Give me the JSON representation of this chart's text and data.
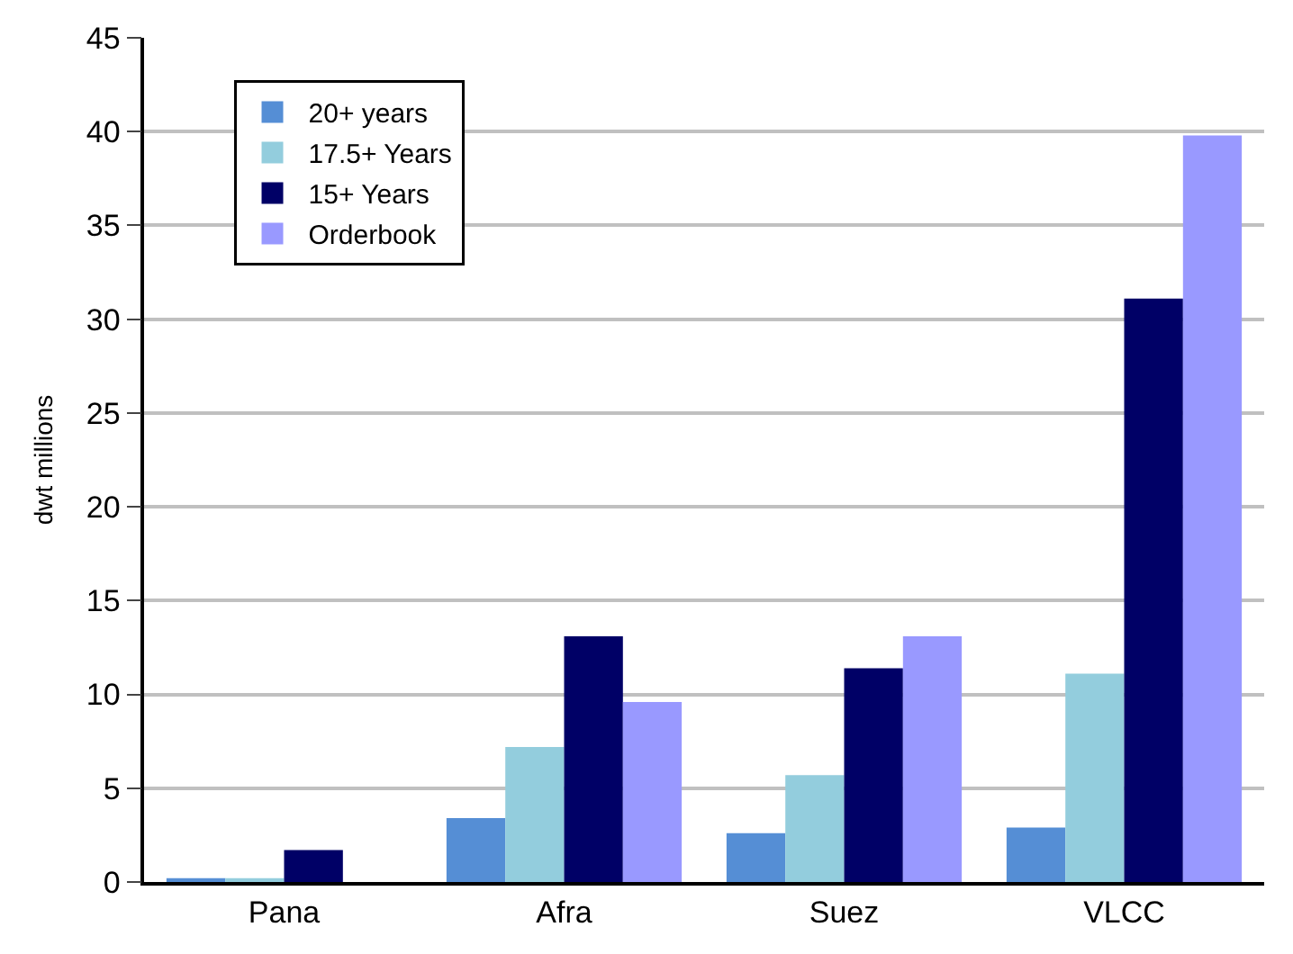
{
  "chart_data": {
    "type": "bar",
    "ylabel": "dwt millions",
    "categories": [
      "Pana",
      "Afra",
      "Suez",
      "VLCC"
    ],
    "series": [
      {
        "name": "20+ years",
        "color": "#558ed5",
        "values": [
          0.2,
          3.4,
          2.6,
          2.9
        ]
      },
      {
        "name": "17.5+ Years",
        "color": "#93cddd",
        "values": [
          0.2,
          7.2,
          5.7,
          11.1
        ]
      },
      {
        "name": "15+ Years",
        "color": "#000066",
        "values": [
          1.7,
          13.1,
          11.4,
          31.1
        ]
      },
      {
        "name": "Orderbook",
        "color": "#9999ff",
        "values": [
          0,
          9.6,
          13.1,
          39.8
        ]
      }
    ],
    "ylim": [
      0,
      45
    ],
    "yticks": [
      0,
      5,
      10,
      15,
      20,
      25,
      30,
      35,
      40,
      45
    ],
    "grid": "y",
    "legend": "top left"
  }
}
